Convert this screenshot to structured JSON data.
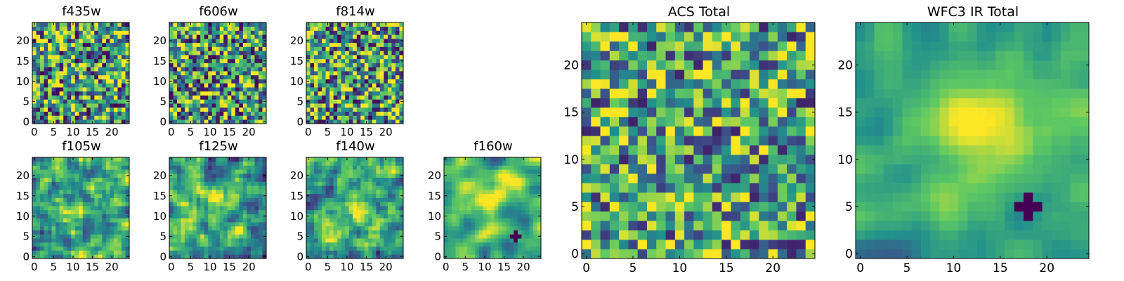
{
  "colormap": [
    "#440154",
    "#3b528b",
    "#21918c",
    "#5ec962",
    "#fde725"
  ],
  "chart_data": [
    {
      "type": "heatmap",
      "title": "f435w",
      "grid": false,
      "size": 25,
      "xlim": [
        0,
        24
      ],
      "ylim": [
        0,
        24
      ],
      "xticks": [
        0,
        5,
        10,
        15,
        20
      ],
      "yticks": [
        0,
        5,
        10,
        15,
        20
      ],
      "smooth": 0,
      "noise": 0.55,
      "mean": 0.55,
      "seed": 11,
      "spots": []
    },
    {
      "type": "heatmap",
      "title": "f606w",
      "grid": false,
      "size": 25,
      "xlim": [
        0,
        24
      ],
      "ylim": [
        0,
        24
      ],
      "xticks": [
        0,
        5,
        10,
        15,
        20
      ],
      "yticks": [
        0,
        5,
        10,
        15,
        20
      ],
      "smooth": 0,
      "noise": 0.55,
      "mean": 0.55,
      "seed": 23,
      "spots": []
    },
    {
      "type": "heatmap",
      "title": "f814w",
      "grid": false,
      "size": 25,
      "xlim": [
        0,
        24
      ],
      "ylim": [
        0,
        24
      ],
      "xticks": [
        0,
        5,
        10,
        15,
        20
      ],
      "yticks": [
        0,
        5,
        10,
        15,
        20
      ],
      "smooth": 0,
      "noise": 0.55,
      "mean": 0.56,
      "seed": 37,
      "spots": []
    },
    {
      "type": "heatmap",
      "title": "f105w",
      "grid": false,
      "size": 25,
      "xlim": [
        0,
        24
      ],
      "ylim": [
        0,
        24
      ],
      "xticks": [
        0,
        5,
        10,
        15,
        20
      ],
      "yticks": [
        0,
        5,
        10,
        15,
        20
      ],
      "smooth": 1,
      "noise": 0.55,
      "mean": 0.58,
      "seed": 41,
      "spots": [
        [
          11,
          11,
          5,
          0.2
        ]
      ]
    },
    {
      "type": "heatmap",
      "title": "f125w",
      "grid": false,
      "size": 25,
      "xlim": [
        0,
        24
      ],
      "ylim": [
        0,
        24
      ],
      "xticks": [
        0,
        5,
        10,
        15,
        20
      ],
      "yticks": [
        0,
        5,
        10,
        15,
        20
      ],
      "smooth": 1,
      "noise": 0.55,
      "mean": 0.58,
      "seed": 53,
      "spots": [
        [
          12,
          14,
          6,
          0.2
        ]
      ]
    },
    {
      "type": "heatmap",
      "title": "f140w",
      "grid": false,
      "size": 25,
      "xlim": [
        0,
        24
      ],
      "ylim": [
        0,
        24
      ],
      "xticks": [
        0,
        5,
        10,
        15,
        20
      ],
      "yticks": [
        0,
        5,
        10,
        15,
        20
      ],
      "smooth": 1,
      "noise": 0.5,
      "mean": 0.6,
      "seed": 67,
      "spots": [
        [
          12,
          12,
          6,
          0.25
        ]
      ]
    },
    {
      "type": "heatmap",
      "title": "f160w",
      "grid": false,
      "size": 25,
      "xlim": [
        0,
        24
      ],
      "ylim": [
        0,
        24
      ],
      "xticks": [
        0,
        5,
        10,
        15,
        20
      ],
      "yticks": [
        0,
        5,
        10,
        15,
        20
      ],
      "smooth": 2,
      "noise": 0.4,
      "mean": 0.62,
      "seed": 71,
      "spots": [
        [
          13,
          16,
          7,
          0.35
        ]
      ],
      "masked_cross": [
        18,
        5
      ]
    },
    {
      "type": "heatmap",
      "title": "ACS Total",
      "grid": false,
      "size": 25,
      "xlim": [
        0,
        24
      ],
      "ylim": [
        0,
        24
      ],
      "xticks": [
        0,
        5,
        10,
        15,
        20
      ],
      "yticks": [
        0,
        5,
        10,
        15,
        20
      ],
      "smooth": 0,
      "noise": 0.5,
      "mean": 0.6,
      "seed": 83,
      "spots": []
    },
    {
      "type": "heatmap",
      "title": "WFC3 IR Total",
      "grid": false,
      "size": 25,
      "xlim": [
        0,
        24
      ],
      "ylim": [
        0,
        24
      ],
      "xticks": [
        0,
        5,
        10,
        15,
        20
      ],
      "yticks": [
        0,
        5,
        10,
        15,
        20
      ],
      "smooth": 2,
      "noise": 0.3,
      "mean": 0.6,
      "seed": 97,
      "spots": [
        [
          13,
          14,
          7,
          0.4
        ]
      ],
      "masked_cross": [
        18,
        5
      ]
    }
  ]
}
